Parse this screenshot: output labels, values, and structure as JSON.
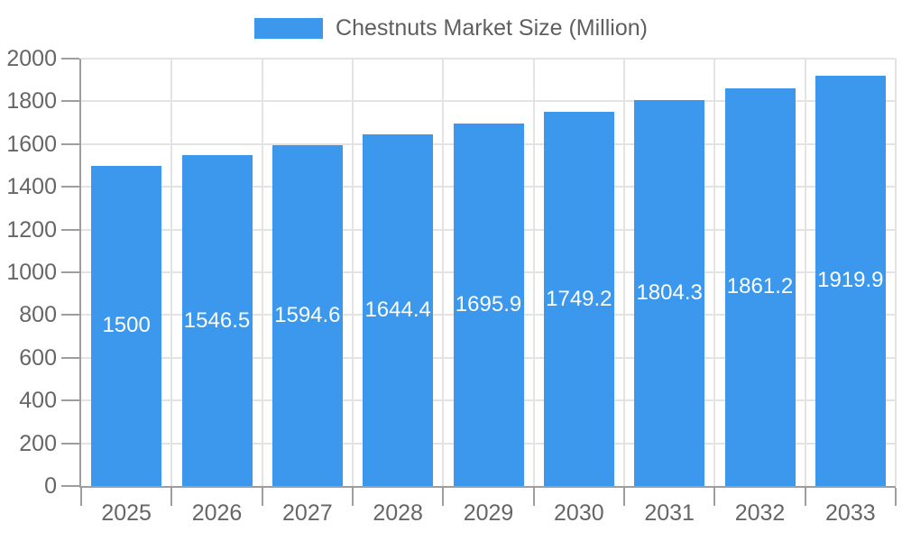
{
  "chart_data": {
    "type": "bar",
    "title": "Chestnuts Market Size (Million)",
    "legend": "Chestnuts Market Size (Million)",
    "legend_position": "top-center",
    "categories": [
      "2025",
      "2026",
      "2027",
      "2028",
      "2029",
      "2030",
      "2031",
      "2032",
      "2033"
    ],
    "series": [
      {
        "name": "Chestnuts Market Size (Million)",
        "values": [
          1500,
          1546.5,
          1594.6,
          1644.4,
          1695.9,
          1749.2,
          1804.3,
          1861.2,
          1919.9
        ],
        "value_labels": [
          "1500",
          "1546.5",
          "1594.6",
          "1644.4",
          "1695.9",
          "1749.2",
          "1804.3",
          "1861.2",
          "1919.9"
        ]
      }
    ],
    "xlabel": "",
    "ylabel": "",
    "ylim": [
      0,
      2000
    ],
    "y_ticks": [
      0,
      200,
      400,
      600,
      800,
      1000,
      1200,
      1400,
      1600,
      1800,
      2000
    ],
    "grid": true,
    "value_label_position": "inside-center",
    "colors": {
      "bar": "#3B98EC",
      "axis": "#9E9E9E",
      "grid": "#E3E3E3",
      "tick_text": "#666666",
      "legend_text": "#5f5f5f",
      "value_text": "#FFFFFF",
      "background": "#FFFFFF"
    }
  }
}
